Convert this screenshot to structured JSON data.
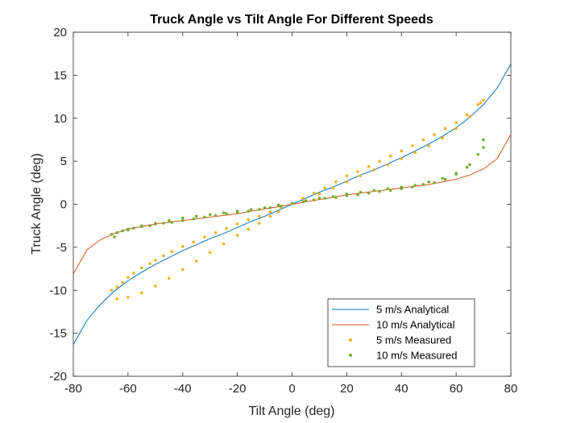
{
  "chart_data": {
    "type": "line",
    "title": "Truck Angle vs Tilt Angle For Different Speeds",
    "xlabel": "Tilt Angle (deg)",
    "ylabel": "Truck Angle (deg)",
    "xlim": [
      -80,
      80
    ],
    "ylim": [
      -20,
      20
    ],
    "xticks": [
      -80,
      -60,
      -40,
      -20,
      0,
      20,
      40,
      60,
      80
    ],
    "yticks": [
      -20,
      -15,
      -10,
      -5,
      0,
      5,
      10,
      15,
      20
    ],
    "grid": false,
    "legend_position": "bottom-right",
    "series": [
      {
        "name": "5 m/s Analytical",
        "kind": "line",
        "color": "#0072BD",
        "x": [
          -80,
          -75,
          -70,
          -65,
          -60,
          -55,
          -50,
          -45,
          -40,
          -35,
          -30,
          -25,
          -20,
          -15,
          -10,
          -5,
          0,
          5,
          10,
          15,
          20,
          25,
          30,
          35,
          40,
          45,
          50,
          55,
          60,
          65,
          70,
          75,
          80
        ],
        "y": [
          -16.3,
          -13.5,
          -11.6,
          -10.1,
          -8.9,
          -7.9,
          -7.0,
          -6.2,
          -5.4,
          -4.7,
          -4.0,
          -3.4,
          -2.7,
          -2.0,
          -1.4,
          -0.7,
          0,
          0.7,
          1.4,
          2.0,
          2.7,
          3.4,
          4.0,
          4.7,
          5.4,
          6.2,
          7.0,
          7.9,
          8.9,
          10.1,
          11.6,
          13.5,
          16.3
        ]
      },
      {
        "name": "10 m/s Analytical",
        "kind": "line",
        "color": "#D95319",
        "x": [
          -80,
          -75,
          -70,
          -65,
          -60,
          -55,
          -50,
          -45,
          -40,
          -35,
          -30,
          -25,
          -20,
          -15,
          -10,
          -5,
          0,
          5,
          10,
          15,
          20,
          25,
          30,
          35,
          40,
          45,
          50,
          55,
          60,
          65,
          70,
          75,
          80
        ],
        "y": [
          -8.1,
          -5.3,
          -4.1,
          -3.4,
          -2.9,
          -2.6,
          -2.3,
          -2.1,
          -1.9,
          -1.7,
          -1.5,
          -1.3,
          -1.1,
          -0.8,
          -0.55,
          -0.28,
          0,
          0.28,
          0.55,
          0.8,
          1.1,
          1.3,
          1.5,
          1.7,
          1.9,
          2.1,
          2.3,
          2.6,
          2.9,
          3.4,
          4.1,
          5.3,
          8.1
        ]
      },
      {
        "name": "5 m/s Measured",
        "kind": "scatter",
        "color": "#EDB120",
        "x": [
          -66,
          -64,
          -62,
          -60,
          -58,
          -55,
          -52,
          -50,
          -47,
          -44,
          -40,
          -36,
          -32,
          -28,
          -24,
          -20,
          -16,
          -12,
          -8,
          -4,
          0,
          4,
          8,
          12,
          16,
          20,
          24,
          28,
          32,
          36,
          40,
          44,
          48,
          52,
          56,
          60,
          64,
          68,
          70,
          -64,
          -60,
          -55,
          -50,
          -45,
          -40,
          -35,
          -30,
          -25,
          -20,
          -16,
          -12,
          -8,
          -5,
          5,
          10,
          15,
          20,
          25,
          30,
          35,
          40,
          45,
          50,
          55,
          60,
          65,
          69
        ],
        "y": [
          -10.0,
          -9.6,
          -9.1,
          -8.5,
          -8.0,
          -7.4,
          -6.9,
          -6.5,
          -6.0,
          -5.5,
          -4.9,
          -4.4,
          -3.8,
          -3.3,
          -2.8,
          -2.3,
          -1.8,
          -1.4,
          -0.9,
          -0.4,
          0.1,
          0.7,
          1.3,
          1.9,
          2.6,
          3.3,
          3.8,
          4.4,
          5.0,
          5.6,
          6.2,
          6.8,
          7.5,
          8.1,
          8.8,
          9.5,
          10.4,
          11.6,
          12.1,
          -11.0,
          -10.8,
          -10.3,
          -9.5,
          -8.6,
          -7.6,
          -6.6,
          -5.6,
          -4.6,
          -3.6,
          -2.9,
          -2.2,
          -1.4,
          -0.9,
          0.4,
          1.2,
          1.9,
          2.6,
          3.3,
          4.0,
          4.6,
          5.3,
          6.0,
          6.8,
          7.7,
          8.8,
          10.2,
          11.8
        ]
      },
      {
        "name": "10 m/s Measured",
        "kind": "scatter",
        "color": "#77AC30",
        "x": [
          -66,
          -64,
          -62,
          -60,
          -58,
          -55,
          -52,
          -50,
          -47,
          -44,
          -40,
          -36,
          -32,
          -28,
          -24,
          -20,
          -16,
          -12,
          -8,
          -4,
          0,
          4,
          8,
          12,
          16,
          20,
          24,
          28,
          32,
          36,
          40,
          44,
          48,
          52,
          56,
          60,
          64,
          68,
          70,
          -65,
          -60,
          -55,
          -50,
          -45,
          -40,
          -35,
          -30,
          -25,
          -20,
          -15,
          -10,
          -5,
          5,
          10,
          15,
          20,
          25,
          30,
          35,
          40,
          45,
          50,
          55,
          60,
          65,
          70
        ],
        "y": [
          -3.5,
          -3.3,
          -3.1,
          -2.9,
          -2.8,
          -2.6,
          -2.5,
          -2.3,
          -2.2,
          -2.1,
          -1.9,
          -1.7,
          -1.5,
          -1.3,
          -1.1,
          -1.0,
          -0.8,
          -0.6,
          -0.4,
          -0.2,
          0.1,
          0.3,
          0.5,
          0.7,
          0.8,
          1.0,
          1.1,
          1.3,
          1.5,
          1.6,
          1.8,
          2.0,
          2.3,
          2.5,
          2.9,
          3.5,
          4.3,
          5.8,
          6.6,
          -3.8,
          -3.0,
          -2.5,
          -2.2,
          -1.9,
          -1.6,
          -1.4,
          -1.2,
          -1.0,
          -0.8,
          -0.6,
          -0.4,
          -0.1,
          0.4,
          0.7,
          0.9,
          1.2,
          1.4,
          1.6,
          1.8,
          2.0,
          2.2,
          2.6,
          3.0,
          3.6,
          4.6,
          7.5
        ]
      }
    ]
  }
}
